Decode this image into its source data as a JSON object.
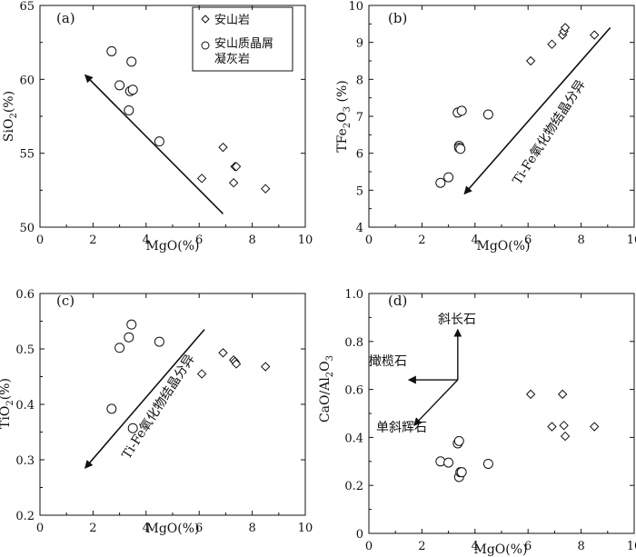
{
  "legend": {
    "andesite": "安山岩",
    "tuff_line1": "安山质晶屑",
    "tuff_line2": "凝灰岩"
  },
  "chart_data": [
    {
      "id": "a",
      "panel_label": "(a)",
      "type": "scatter",
      "xlabel": "MgO(%)",
      "ylabel": "SiO2(%)",
      "xlim": [
        0,
        10
      ],
      "ylim": [
        50,
        65
      ],
      "xticks": [
        "0",
        "2",
        "4",
        "6",
        "8",
        "10"
      ],
      "yticks": [
        "50",
        "55",
        "60",
        "65"
      ],
      "series": [
        {
          "name": "安山岩",
          "marker": "diamond",
          "x": [
            6.1,
            6.9,
            7.3,
            7.35,
            7.4,
            8.5
          ],
          "y": [
            53.3,
            55.4,
            53.0,
            54.1,
            54.1,
            52.6
          ]
        },
        {
          "name": "安山质晶屑凝灰岩",
          "marker": "circle",
          "x": [
            2.7,
            3.0,
            3.35,
            3.4,
            3.45,
            3.5,
            4.5
          ],
          "y": [
            61.9,
            59.6,
            57.9,
            59.2,
            61.2,
            59.3,
            55.8
          ]
        }
      ],
      "arrow": {
        "from": [
          6.9,
          50.9
        ],
        "to": [
          1.7,
          60.3
        ]
      }
    },
    {
      "id": "b",
      "panel_label": "(b)",
      "type": "scatter",
      "xlabel": "MgO(%)",
      "ylabel": "TFe2O3 (%)",
      "xlim": [
        0,
        10
      ],
      "ylim": [
        4,
        10
      ],
      "xticks": [
        "0",
        "2",
        "4",
        "6",
        "8",
        "10"
      ],
      "yticks": [
        "4",
        "5",
        "6",
        "7",
        "8",
        "9",
        "10"
      ],
      "series": [
        {
          "name": "安山岩",
          "marker": "diamond",
          "x": [
            6.1,
            6.9,
            7.3,
            7.35,
            7.4,
            8.5
          ],
          "y": [
            8.5,
            8.95,
            9.2,
            9.3,
            9.4,
            9.2
          ]
        },
        {
          "name": "安山质晶屑凝灰岩",
          "marker": "circle",
          "x": [
            2.7,
            3.0,
            3.35,
            3.4,
            3.4,
            3.45,
            3.5,
            4.5
          ],
          "y": [
            5.2,
            5.35,
            7.1,
            6.2,
            6.15,
            6.12,
            7.15,
            7.05
          ]
        }
      ],
      "arrow": {
        "from": [
          9.1,
          9.4
        ],
        "to": [
          3.6,
          4.9
        ]
      },
      "annotation": "Ti-Fe氧化物结晶分异"
    },
    {
      "id": "c",
      "panel_label": "(c)",
      "type": "scatter",
      "xlabel": "MgO(%)",
      "ylabel": "TiO2(%)",
      "xlim": [
        0,
        10
      ],
      "ylim": [
        0.2,
        0.6
      ],
      "xticks": [
        "0",
        "2",
        "4",
        "6",
        "8",
        "10"
      ],
      "yticks": [
        "0.2",
        "0.3",
        "0.4",
        "0.5",
        "0.6"
      ],
      "series": [
        {
          "name": "安山岩",
          "marker": "diamond",
          "x": [
            6.1,
            6.9,
            7.3,
            7.35,
            7.4,
            8.5
          ],
          "y": [
            0.455,
            0.493,
            0.48,
            0.477,
            0.473,
            0.468
          ]
        },
        {
          "name": "安山质晶屑凝灰岩",
          "marker": "circle",
          "x": [
            2.7,
            3.0,
            3.35,
            3.45,
            3.5,
            4.5
          ],
          "y": [
            0.392,
            0.502,
            0.521,
            0.544,
            0.357,
            0.513
          ]
        }
      ],
      "arrow": {
        "from": [
          6.2,
          0.535
        ],
        "to": [
          1.7,
          0.285
        ]
      },
      "annotation": "Ti-Fe氧化物结晶分异"
    },
    {
      "id": "d",
      "panel_label": "(d)",
      "type": "scatter",
      "xlabel": "MgO(%)",
      "ylabel": "CaO/Al2O3",
      "xlim": [
        0,
        10
      ],
      "ylim": [
        0,
        1.0
      ],
      "xticks": [
        "0",
        "2",
        "4",
        "6",
        "8",
        "10"
      ],
      "yticks": [
        "0",
        "0.2",
        "0.4",
        "0.6",
        "0.8",
        "1.0"
      ],
      "series": [
        {
          "name": "安山岩",
          "marker": "diamond",
          "x": [
            6.1,
            6.9,
            7.3,
            7.35,
            7.4,
            8.5
          ],
          "y": [
            0.58,
            0.445,
            0.58,
            0.45,
            0.405,
            0.445
          ]
        },
        {
          "name": "安山质晶屑凝灰岩",
          "marker": "circle",
          "x": [
            2.7,
            3.0,
            3.35,
            3.4,
            3.4,
            3.45,
            3.5,
            4.5
          ],
          "y": [
            0.3,
            0.295,
            0.375,
            0.385,
            0.235,
            0.255,
            0.255,
            0.29
          ]
        }
      ],
      "vectors": {
        "origin": [
          3.35,
          0.64
        ],
        "plagioclase": {
          "label": "斜长石",
          "to": [
            3.35,
            0.85
          ]
        },
        "olivine": {
          "label": "橄榄石",
          "to": [
            1.5,
            0.64
          ]
        },
        "clinopyroxene": {
          "label": "单斜辉石",
          "to": [
            1.7,
            0.45
          ]
        }
      }
    }
  ]
}
